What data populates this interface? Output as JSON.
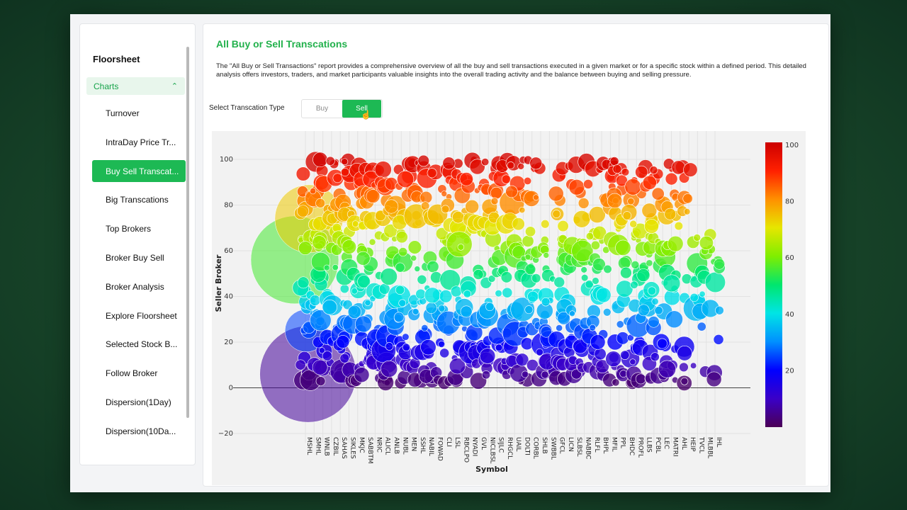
{
  "sidebar": {
    "title": "Floorsheet",
    "group_label": "Charts",
    "items": [
      "Turnover",
      "IntraDay Price Tr...",
      "Buy Sell Transcat...",
      "Big Transcations",
      "Top Brokers",
      "Broker Buy Sell",
      "Broker Analysis",
      "Explore Floorsheet",
      "Selected Stock B...",
      "Follow Broker",
      "Dispersion(1Day)",
      "Dispersion(10Da..."
    ],
    "active_index": 2
  },
  "page": {
    "title": "All Buy or Sell Transcations",
    "description": "The \"All Buy or Sell Transactions\" report provides a comprehensive overview of all the buy and sell transactions executed in a given market or for a specific stock within a defined period. This detailed analysis offers investors, traders, and market participants valuable insights into the overall trading activity and the balance between buying and selling pressure."
  },
  "transaction_type": {
    "label": "Select Transcation Type",
    "options": [
      "Buy",
      "Sell"
    ],
    "selected": "Sell"
  },
  "chart_data": {
    "type": "scatter",
    "xlabel": "Symbol",
    "ylabel": "Seller Broker",
    "ylim": [
      -25,
      105
    ],
    "y_ticks": [
      -20,
      0,
      20,
      40,
      60,
      80,
      100
    ],
    "categories": [
      "MSHL",
      "SMHL",
      "WNLB",
      "CZBIL",
      "SAHAS",
      "SIKLES",
      "MKJC",
      "SABBTM",
      "NRIC",
      "ALICL",
      "ANLB",
      "NUBL",
      "MEN",
      "SSHL",
      "NABIL",
      "FOWAD",
      "CLI",
      "LSL",
      "RBCLPO",
      "NYADI",
      "GVL",
      "NICLBSL",
      "SIJLC",
      "RHGCL",
      "UAIL",
      "DOLTI",
      "CORBL",
      "SHLB",
      "SWBBL",
      "GFCL",
      "LICN",
      "SLBSL",
      "NABBC",
      "RLFL",
      "BHPL",
      "MFIL",
      "PPL",
      "BHDC",
      "PROFL",
      "LLBS",
      "PCBL",
      "LEC",
      "MATRI",
      "AHL",
      "HEIP",
      "TVCL",
      "MLBBL",
      "IHL"
    ],
    "colorscale": [
      "#4b0055",
      "#3a00c8",
      "#0000ff",
      "#0090ff",
      "#00e5e5",
      "#00e66e",
      "#7fee00",
      "#e6e600",
      "#ff9000",
      "#ff2000",
      "#cc0000"
    ],
    "colorbar_ticks": [
      20,
      40,
      60,
      80,
      100
    ],
    "colorbar_range": [
      0,
      101
    ],
    "large_bubbles": [
      {
        "x": 0.3,
        "y": 6,
        "size": 68
      },
      {
        "x": 0.0,
        "y": 56,
        "size": 62
      },
      {
        "x": 0.4,
        "y": 74,
        "size": 48
      },
      {
        "x": 0.1,
        "y": 25,
        "size": 30
      }
    ],
    "scatter_note": "Dense bubble field: each symbol has many bubbles across Seller Broker 0-100, color = Seller Broker value."
  }
}
